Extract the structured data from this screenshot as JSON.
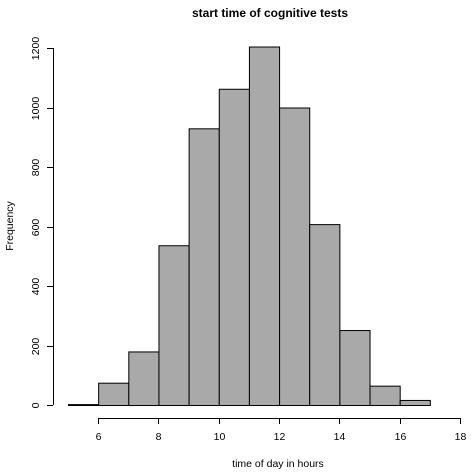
{
  "chart_data": {
    "type": "bar",
    "title": "start time of cognitive tests",
    "xlabel": "time of day in hours",
    "ylabel": "Frequency",
    "xlim": [
      5,
      18
    ],
    "ylim": [
      0,
      1200
    ],
    "x_ticks": [
      6,
      8,
      10,
      12,
      14,
      16,
      18
    ],
    "y_ticks": [
      0,
      200,
      400,
      600,
      800,
      1000,
      1200
    ],
    "bins": [
      {
        "start": 5,
        "end": 6,
        "value": 3
      },
      {
        "start": 6,
        "end": 7,
        "value": 75
      },
      {
        "start": 7,
        "end": 8,
        "value": 180
      },
      {
        "start": 8,
        "end": 9,
        "value": 537
      },
      {
        "start": 9,
        "end": 10,
        "value": 930
      },
      {
        "start": 10,
        "end": 11,
        "value": 1063
      },
      {
        "start": 11,
        "end": 12,
        "value": 1205
      },
      {
        "start": 12,
        "end": 13,
        "value": 1000
      },
      {
        "start": 13,
        "end": 14,
        "value": 608
      },
      {
        "start": 14,
        "end": 15,
        "value": 252
      },
      {
        "start": 15,
        "end": 16,
        "value": 65
      },
      {
        "start": 16,
        "end": 17,
        "value": 17
      },
      {
        "start": 17,
        "end": 18,
        "value": 0
      }
    ],
    "bar_color": "#a9a9a9",
    "grid": false,
    "legend": "none"
  }
}
